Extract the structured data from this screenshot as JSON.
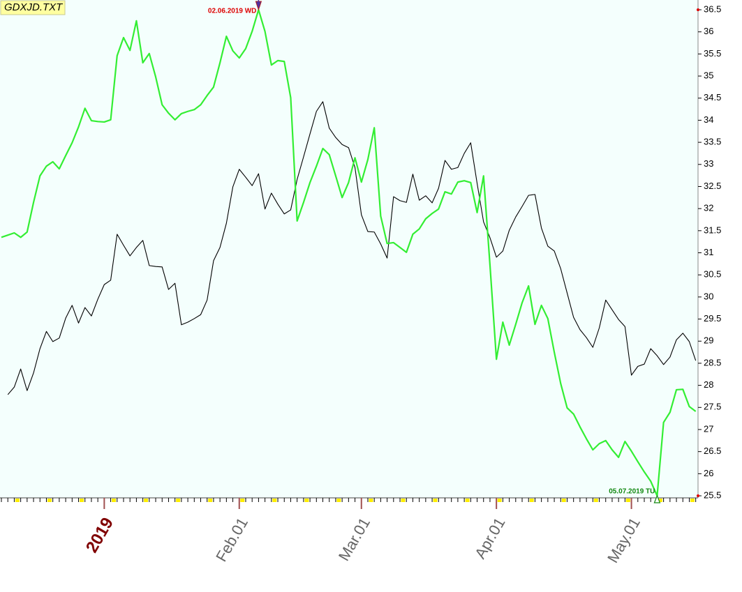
{
  "chart_data": {
    "type": "line",
    "title": "GDXJD.TXT",
    "categories": [
      null,
      null,
      null,
      null,
      null,
      null,
      null,
      null,
      null,
      null,
      null,
      null,
      null,
      null,
      null,
      null,
      "2019",
      null,
      null,
      null,
      null,
      null,
      null,
      null,
      null,
      null,
      null,
      null,
      null,
      null,
      null,
      null,
      null,
      null,
      null,
      null,
      null,
      "Feb.01",
      null,
      null,
      null,
      null,
      null,
      null,
      null,
      null,
      null,
      null,
      null,
      null,
      null,
      null,
      null,
      null,
      null,
      null,
      "Mar.01",
      null,
      null,
      null,
      null,
      null,
      null,
      null,
      null,
      null,
      null,
      null,
      null,
      null,
      null,
      null,
      null,
      null,
      null,
      null,
      null,
      "Apr.01",
      null,
      null,
      null,
      null,
      null,
      null,
      null,
      null,
      null,
      null,
      null,
      null,
      null,
      null,
      null,
      null,
      null,
      null,
      null,
      null,
      "May.01",
      null,
      null,
      null,
      null,
      null,
      null,
      null,
      null,
      null,
      null
    ],
    "series": [
      {
        "color": "#000000",
        "values": [
          null,
          27.79,
          27.96,
          28.37,
          27.88,
          28.28,
          28.83,
          29.22,
          28.99,
          29.07,
          29.52,
          29.81,
          29.41,
          29.76,
          29.57,
          29.95,
          30.28,
          30.38,
          31.42,
          31.17,
          30.93,
          31.12,
          31.28,
          30.71,
          30.69,
          30.68,
          30.17,
          30.31,
          29.37,
          29.43,
          29.51,
          29.6,
          29.93,
          30.82,
          31.12,
          31.67,
          32.49,
          32.89,
          32.71,
          32.52,
          32.79,
          31.99,
          32.35,
          32.1,
          31.88,
          31.97,
          32.66,
          33.17,
          33.69,
          34.2,
          34.42,
          33.82,
          33.61,
          33.45,
          33.38,
          32.93,
          31.86,
          31.48,
          31.47,
          31.2,
          30.88,
          32.27,
          32.18,
          32.14,
          32.78,
          32.19,
          32.29,
          32.13,
          32.46,
          33.09,
          32.89,
          32.93,
          33.25,
          33.49,
          32.57,
          31.7,
          31.34,
          30.9,
          31.04,
          31.51,
          31.81,
          32.05,
          32.3,
          32.32,
          31.56,
          31.15,
          31.04,
          30.64,
          30.09,
          29.54,
          29.26,
          29.08,
          28.86,
          29.3,
          29.93,
          29.71,
          29.49,
          29.33,
          28.23,
          28.43,
          28.48,
          28.83,
          28.67,
          28.47,
          28.64,
          29.03,
          29.18,
          28.99,
          28.56
        ]
      },
      {
        "color": "#33ee33",
        "values": [
          31.35,
          31.4,
          31.45,
          31.35,
          31.47,
          32.14,
          32.74,
          32.96,
          33.06,
          32.9,
          33.2,
          33.49,
          33.85,
          34.27,
          33.99,
          33.97,
          33.96,
          34.01,
          35.46,
          35.87,
          35.58,
          36.25,
          35.3,
          35.51,
          34.98,
          34.35,
          34.16,
          34.01,
          34.15,
          34.2,
          34.24,
          34.35,
          34.56,
          34.75,
          35.3,
          35.9,
          35.57,
          35.41,
          35.62,
          36.01,
          36.5,
          36.01,
          35.25,
          35.35,
          35.33,
          34.51,
          31.72,
          32.14,
          32.59,
          32.96,
          33.36,
          33.22,
          32.74,
          32.25,
          32.59,
          33.15,
          32.6,
          33.11,
          33.83,
          31.83,
          31.21,
          31.23,
          31.12,
          31.01,
          31.42,
          31.54,
          31.77,
          31.89,
          31.99,
          32.38,
          32.33,
          32.6,
          32.63,
          32.59,
          31.91,
          32.74,
          30.72,
          28.59,
          29.43,
          28.91,
          29.38,
          29.87,
          30.25,
          29.38,
          29.81,
          29.51,
          28.75,
          28.04,
          27.49,
          27.35,
          27.06,
          26.79,
          26.54,
          26.68,
          26.75,
          26.54,
          26.37,
          26.73,
          26.51,
          26.27,
          26.04,
          25.83,
          25.5,
          27.16,
          27.39,
          27.9,
          27.91,
          27.52,
          27.41
        ]
      }
    ],
    "annotations": [
      {
        "text": "02.06.2019 WD",
        "color": "#dd0000"
      },
      {
        "text": "05.07.2019 TU",
        "color": "#118811"
      }
    ],
    "ylim": [
      25.45,
      36.65
    ],
    "yticks": [
      25.5,
      26,
      26.5,
      27,
      27.5,
      28,
      28.5,
      29,
      29.5,
      30,
      30.5,
      31,
      31.5,
      32,
      32.5,
      33,
      33.5,
      34,
      34.5,
      35,
      35.5,
      36,
      36.5
    ],
    "background": "#f4fffd"
  }
}
